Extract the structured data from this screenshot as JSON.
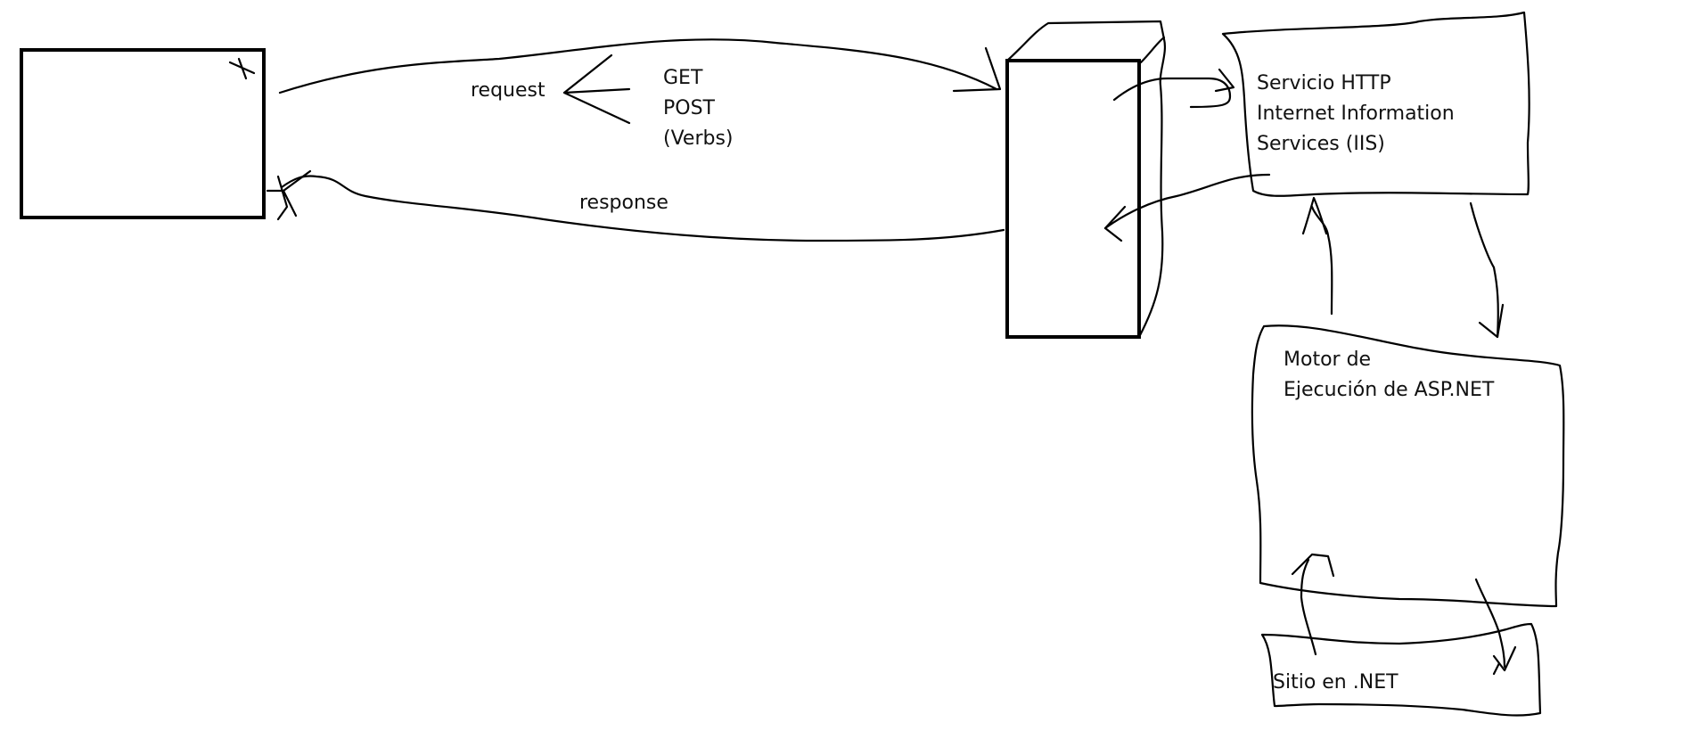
{
  "labels": {
    "request": "request",
    "verb_get": "GET",
    "verb_post": "POST",
    "verb_note": "(Verbs)",
    "response": "response",
    "http_line1": "Servicio HTTP",
    "http_line2": "Internet Information",
    "http_line3": "Services (IIS)",
    "engine_line1": "Motor de",
    "engine_line2": "Ejecución de ASP.NET",
    "site": "Sitio en .NET"
  },
  "colors": {
    "ink": "#000000",
    "background": "#ffffff"
  }
}
